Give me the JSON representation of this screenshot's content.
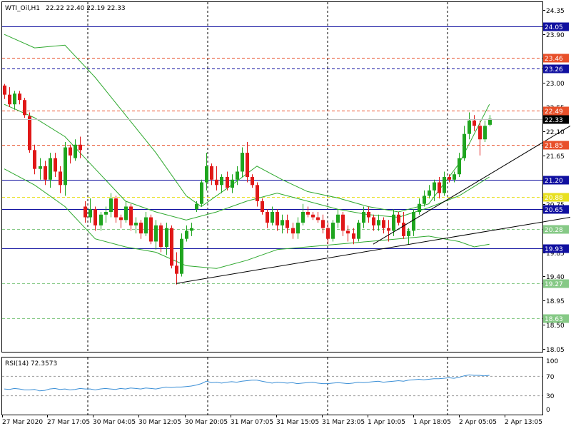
{
  "header": {
    "symbol": "WTI_Oil,H1",
    "ohlc": "22.22 22.40 22.19 22.33"
  },
  "colors": {
    "up": "#1fa51f",
    "down": "#e01818",
    "bollinger": "#2ea82e",
    "h_blue": "#1010a0",
    "h_orange": "#e8502a",
    "h_yellow": "#e8e020",
    "h_green": "#86c986",
    "rsi": "#3b8fd6",
    "rsi_level": "#9a9a9a",
    "trendline": "#000000",
    "current_bg": "#000000"
  },
  "chart_data": [
    {
      "type": "candlestick",
      "title": "WTI_Oil,H1",
      "ylim": [
        18.0,
        24.5
      ],
      "y_ticks": [
        "24.35",
        "23.90",
        "23.45",
        "23.00",
        "22.55",
        "22.10",
        "21.65",
        "21.20",
        "20.75",
        "20.30",
        "19.85",
        "19.40",
        "18.95",
        "18.50",
        "18.05"
      ],
      "x_labels": [
        "27 Mar 2020",
        "27 Mar 17:05",
        "30 Mar 04:05",
        "30 Mar 12:05",
        "30 Mar 20:05",
        "31 Mar 07:05",
        "31 Mar 15:05",
        "31 Mar 23:05",
        "1 Apr 10:05",
        "1 Apr 18:05",
        "2 Apr 05:05",
        "2 Apr 13:05"
      ],
      "grid": "dashed vertical",
      "levels": [
        {
          "value": 24.05,
          "label": "24.05",
          "style": "solid",
          "color": "h_blue"
        },
        {
          "value": 23.46,
          "label": "23.46",
          "style": "dashed",
          "color": "h_orange"
        },
        {
          "value": 23.26,
          "label": "23.26",
          "style": "dashed",
          "color": "h_blue"
        },
        {
          "value": 22.49,
          "label": "22.49",
          "style": "dashed",
          "color": "h_orange"
        },
        {
          "value": 21.85,
          "label": "21.85",
          "style": "dashed",
          "color": "h_orange"
        },
        {
          "value": 21.2,
          "label": "21.20",
          "style": "solid",
          "color": "h_blue"
        },
        {
          "value": 20.88,
          "label": "20.88",
          "style": "dashed",
          "color": "h_yellow"
        },
        {
          "value": 20.65,
          "label": "20.65",
          "style": "solid",
          "color": "h_blue"
        },
        {
          "value": 20.28,
          "label": "20.28",
          "style": "dashed",
          "color": "h_green"
        },
        {
          "value": 19.93,
          "label": "19.93",
          "style": "solid",
          "color": "h_blue"
        },
        {
          "value": 19.27,
          "label": "19.27",
          "style": "dashed",
          "color": "h_green"
        },
        {
          "value": 18.63,
          "label": "18.63",
          "style": "dashed",
          "color": "h_green"
        }
      ],
      "current_price": "22.33",
      "candles": [
        [
          22.95,
          22.98,
          22.7,
          22.78
        ],
        [
          22.78,
          22.92,
          22.55,
          22.6
        ],
        [
          22.6,
          22.85,
          22.5,
          22.8
        ],
        [
          22.8,
          22.85,
          22.6,
          22.68
        ],
        [
          22.68,
          22.72,
          22.35,
          22.4
        ],
        [
          22.38,
          22.45,
          21.7,
          21.75
        ],
        [
          21.75,
          21.85,
          21.3,
          21.4
        ],
        [
          21.4,
          21.6,
          21.2,
          21.45
        ],
        [
          21.45,
          21.55,
          21.1,
          21.2
        ],
        [
          21.2,
          21.7,
          21.05,
          21.6
        ],
        [
          21.6,
          21.7,
          21.25,
          21.35
        ],
        [
          21.35,
          21.45,
          20.95,
          21.1
        ],
        [
          21.1,
          21.9,
          20.9,
          21.8
        ],
        [
          21.8,
          21.85,
          21.5,
          21.65
        ],
        [
          21.6,
          21.95,
          21.55,
          21.85
        ],
        [
          21.85,
          22.0,
          21.6,
          21.75
        ],
        [
          20.7,
          20.8,
          20.4,
          20.5
        ],
        [
          20.5,
          20.85,
          20.4,
          20.65
        ],
        [
          20.65,
          20.7,
          20.25,
          20.35
        ],
        [
          20.35,
          20.6,
          20.25,
          20.55
        ],
        [
          20.55,
          20.7,
          20.4,
          20.6
        ],
        [
          20.6,
          20.95,
          20.5,
          20.85
        ],
        [
          20.85,
          20.9,
          20.4,
          20.5
        ],
        [
          20.5,
          20.55,
          20.3,
          20.45
        ],
        [
          20.45,
          20.8,
          20.4,
          20.7
        ],
        [
          20.7,
          20.75,
          20.25,
          20.35
        ],
        [
          20.35,
          20.5,
          20.2,
          20.4
        ],
        [
          20.4,
          20.45,
          20.1,
          20.2
        ],
        [
          20.2,
          20.6,
          20.15,
          20.5
        ],
        [
          20.5,
          20.55,
          20.0,
          20.05
        ],
        [
          20.05,
          20.45,
          19.9,
          20.35
        ],
        [
          20.35,
          20.4,
          19.85,
          19.95
        ],
        [
          19.95,
          20.4,
          19.8,
          20.3
        ],
        [
          20.3,
          20.35,
          19.55,
          19.6
        ],
        [
          19.6,
          19.85,
          19.25,
          19.45
        ],
        [
          19.45,
          20.2,
          19.4,
          20.1
        ],
        [
          20.1,
          20.35,
          20.05,
          20.25
        ],
        [
          20.25,
          20.4,
          20.15,
          20.3
        ],
        [
          20.65,
          20.8,
          20.6,
          20.75
        ],
        [
          20.75,
          21.2,
          20.7,
          21.15
        ],
        [
          21.15,
          21.7,
          21.0,
          21.45
        ],
        [
          21.45,
          21.5,
          21.1,
          21.2
        ],
        [
          21.2,
          21.45,
          21.0,
          21.1
        ],
        [
          21.1,
          21.3,
          20.95,
          21.25
        ],
        [
          21.25,
          21.35,
          21.0,
          21.05
        ],
        [
          21.05,
          21.3,
          20.95,
          21.2
        ],
        [
          21.2,
          21.45,
          21.1,
          21.35
        ],
        [
          21.35,
          21.8,
          21.25,
          21.7
        ],
        [
          21.7,
          21.9,
          21.15,
          21.25
        ],
        [
          21.25,
          21.3,
          21.05,
          21.1
        ],
        [
          21.1,
          21.15,
          20.7,
          20.8
        ],
        [
          20.8,
          20.85,
          20.55,
          20.6
        ],
        [
          20.6,
          20.65,
          20.3,
          20.4
        ],
        [
          20.4,
          20.7,
          20.35,
          20.6
        ],
        [
          20.6,
          20.65,
          20.25,
          20.35
        ],
        [
          20.35,
          20.55,
          20.2,
          20.45
        ],
        [
          20.45,
          20.55,
          20.2,
          20.3
        ],
        [
          20.3,
          20.4,
          20.1,
          20.2
        ],
        [
          20.2,
          20.5,
          20.1,
          20.4
        ],
        [
          20.4,
          20.75,
          20.35,
          20.6
        ],
        [
          20.6,
          20.7,
          20.5,
          20.55
        ],
        [
          20.55,
          20.6,
          20.45,
          20.5
        ],
        [
          20.5,
          20.6,
          20.4,
          20.45
        ],
        [
          20.45,
          20.55,
          20.2,
          20.3
        ],
        [
          20.3,
          20.4,
          20.0,
          20.1
        ],
        [
          20.1,
          20.45,
          20.05,
          20.4
        ],
        [
          20.4,
          20.65,
          20.3,
          20.55
        ],
        [
          20.55,
          20.6,
          20.15,
          20.25
        ],
        [
          20.25,
          20.35,
          20.05,
          20.2
        ],
        [
          20.2,
          20.3,
          20.0,
          20.1
        ],
        [
          20.1,
          20.45,
          20.05,
          20.4
        ],
        [
          20.4,
          20.7,
          20.3,
          20.6
        ],
        [
          20.6,
          20.7,
          20.4,
          20.5
        ],
        [
          20.5,
          20.55,
          20.25,
          20.35
        ],
        [
          20.35,
          20.55,
          20.25,
          20.45
        ],
        [
          20.45,
          20.5,
          20.2,
          20.3
        ],
        [
          20.3,
          20.45,
          20.05,
          20.25
        ],
        [
          20.25,
          20.65,
          20.15,
          20.55
        ],
        [
          20.55,
          20.6,
          20.35,
          20.4
        ],
        [
          20.4,
          20.6,
          20.1,
          20.15
        ],
        [
          20.15,
          20.3,
          20.0,
          20.25
        ],
        [
          20.25,
          20.65,
          20.15,
          20.6
        ],
        [
          20.6,
          20.85,
          20.55,
          20.75
        ],
        [
          20.75,
          21.0,
          20.7,
          20.9
        ],
        [
          20.9,
          21.1,
          20.85,
          21.0
        ],
        [
          21.0,
          21.2,
          20.8,
          21.15
        ],
        [
          21.15,
          21.25,
          20.85,
          20.95
        ],
        [
          20.95,
          21.35,
          20.9,
          21.25
        ],
        [
          21.25,
          21.3,
          21.15,
          21.2
        ],
        [
          21.2,
          21.35,
          21.15,
          21.3
        ],
        [
          21.3,
          21.7,
          21.25,
          21.6
        ],
        [
          21.6,
          22.2,
          21.55,
          22.05
        ],
        [
          22.05,
          22.45,
          21.95,
          22.3
        ],
        [
          22.3,
          22.4,
          22.1,
          22.2
        ],
        [
          22.2,
          22.3,
          21.65,
          21.95
        ],
        [
          21.95,
          22.3,
          21.9,
          22.2
        ],
        [
          22.22,
          22.4,
          22.19,
          22.33
        ]
      ],
      "bollinger_upper": [
        [
          0,
          23.9
        ],
        [
          6,
          23.65
        ],
        [
          12,
          23.7
        ],
        [
          18,
          23.1
        ],
        [
          24,
          22.4
        ],
        [
          30,
          21.7
        ],
        [
          36,
          20.9
        ],
        [
          39,
          20.7
        ],
        [
          45,
          21.1
        ],
        [
          50,
          21.45
        ],
        [
          55,
          21.2
        ],
        [
          60,
          20.98
        ],
        [
          66,
          20.86
        ],
        [
          72,
          20.7
        ],
        [
          78,
          20.6
        ],
        [
          84,
          20.75
        ],
        [
          90,
          21.5
        ],
        [
          96,
          22.6
        ]
      ],
      "bollinger_mid": [
        [
          0,
          22.6
        ],
        [
          6,
          22.35
        ],
        [
          12,
          22.0
        ],
        [
          18,
          21.4
        ],
        [
          24,
          20.8
        ],
        [
          30,
          20.6
        ],
        [
          36,
          20.45
        ],
        [
          42,
          20.6
        ],
        [
          48,
          20.8
        ],
        [
          54,
          20.95
        ],
        [
          60,
          20.8
        ],
        [
          66,
          20.65
        ],
        [
          72,
          20.55
        ],
        [
          78,
          20.5
        ],
        [
          84,
          20.68
        ],
        [
          90,
          20.9
        ],
        [
          96,
          21.25
        ]
      ],
      "bollinger_lower": [
        [
          0,
          21.4
        ],
        [
          6,
          21.1
        ],
        [
          12,
          20.7
        ],
        [
          18,
          20.1
        ],
        [
          24,
          19.95
        ],
        [
          30,
          19.85
        ],
        [
          36,
          19.6
        ],
        [
          42,
          19.55
        ],
        [
          48,
          19.7
        ],
        [
          54,
          19.9
        ],
        [
          60,
          19.95
        ],
        [
          66,
          20.0
        ],
        [
          72,
          20.05
        ],
        [
          78,
          20.1
        ],
        [
          84,
          20.15
        ],
        [
          90,
          20.05
        ],
        [
          93,
          19.95
        ],
        [
          96,
          20.0
        ]
      ],
      "trendlines": [
        {
          "x1": 34,
          "y1": 19.27,
          "x2": 112,
          "y2": 20.5
        },
        {
          "x1": 73,
          "y1": 20.0,
          "x2": 112,
          "y2": 22.2
        }
      ]
    },
    {
      "type": "line",
      "title": "RSI(14) 72.3573",
      "ylim": [
        0,
        100
      ],
      "y_ticks": [
        "70",
        "30",
        "0"
      ],
      "upper_tick": "100",
      "levels": [
        70,
        30
      ],
      "values": [
        44,
        43,
        45,
        44,
        42,
        42,
        43,
        40,
        41,
        44,
        45,
        43,
        44,
        42,
        43,
        45,
        44,
        44,
        42,
        44,
        45,
        44,
        43,
        45,
        44,
        46,
        45,
        44,
        46,
        45,
        44,
        46,
        48,
        47,
        48,
        48,
        49,
        50,
        52,
        55,
        60,
        57,
        58,
        56,
        58,
        59,
        58,
        60,
        61,
        62,
        62,
        60,
        58,
        56,
        58,
        57,
        56,
        57,
        55,
        56,
        57,
        58,
        56,
        55,
        55,
        56,
        57,
        56,
        55,
        56,
        58,
        57,
        58,
        59,
        60,
        58,
        59,
        60,
        61,
        60,
        62,
        63,
        64,
        63,
        64,
        65,
        65,
        66,
        67,
        66,
        68,
        71,
        73,
        72,
        72,
        71,
        72
      ]
    }
  ]
}
